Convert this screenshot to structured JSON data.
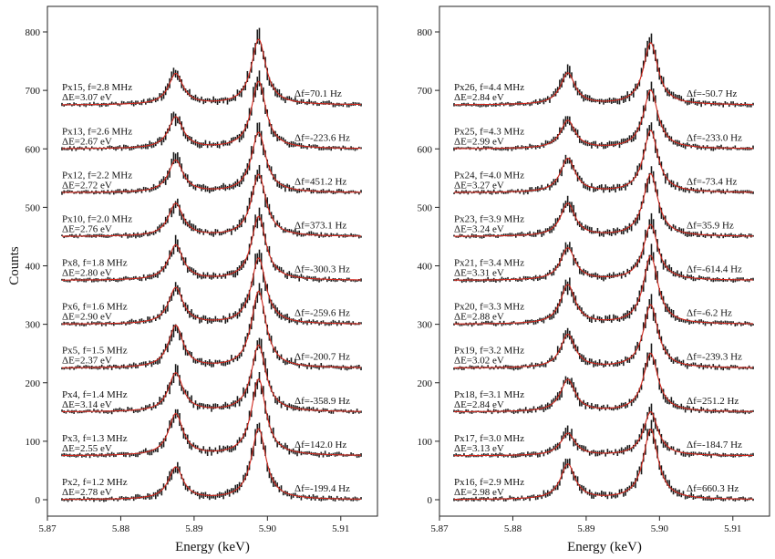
{
  "chart_data": [
    {
      "type": "line",
      "panel": "left",
      "xlabel": "Energy (keV)",
      "ylabel": "Counts",
      "xlim": [
        5.87,
        5.915
      ],
      "ylim": [
        0,
        800
      ],
      "xticks": [
        5.87,
        5.88,
        5.89,
        5.9,
        5.91
      ],
      "xtick_labels": [
        "5.87",
        "5.88",
        "5.89",
        "5.90",
        "5.91"
      ],
      "yticks": [
        0,
        100,
        200,
        300,
        400,
        500,
        600,
        700,
        800
      ],
      "ytick_labels": [
        "0",
        "100",
        "200",
        "300",
        "400",
        "500",
        "600",
        "700",
        "800"
      ],
      "grid": false,
      "offset_step": 75,
      "peak_energies_keV": [
        5.8875,
        5.8988
      ],
      "styles": {
        "data_color": "#1a1a1a",
        "fit_color": "#d0271d"
      },
      "series": [
        {
          "pixel_line1": "Px2, f=1.2 MHz",
          "de": "ΔE=2.78 eV",
          "df": "Δf=-199.4 Hz",
          "offset": 0,
          "peak1": 55,
          "peak2": 121
        },
        {
          "pixel_line1": "Px3, f=1.3 MHz",
          "de": "ΔE=2.55 eV",
          "df": "Δf=142.0 Hz",
          "offset": 75,
          "peak1": 71,
          "peak2": 131
        },
        {
          "pixel_line1": "Px4, f=1.4 MHz",
          "de": "ΔE=3.14 eV",
          "df": "Δf=-358.9 Hz",
          "offset": 150,
          "peak1": 66,
          "peak2": 114
        },
        {
          "pixel_line1": "Px5, f=1.5 MHz",
          "de": "ΔE=2.37 eV",
          "df": "Δf=-200.7 Hz",
          "offset": 225,
          "peak1": 72,
          "peak2": 131
        },
        {
          "pixel_line1": "Px6, f=1.6 MHz",
          "de": "ΔE=2.90 eV",
          "df": "Δf=-259.6 Hz",
          "offset": 300,
          "peak1": 62,
          "peak2": 113
        },
        {
          "pixel_line1": "Px8, f=1.8 MHz",
          "de": "ΔE=2.80 eV",
          "df": "Δf=-300.3 Hz",
          "offset": 375,
          "peak1": 60,
          "peak2": 109
        },
        {
          "pixel_line1": "Px10, f=2.0 MHz",
          "de": "ΔE=2.76 eV",
          "df": "Δf=373.1 Hz",
          "offset": 450,
          "peak1": 56,
          "peak2": 106
        },
        {
          "pixel_line1": "Px12, f=2.2 MHz",
          "de": "ΔE=2.72 eV",
          "df": "Δf=451.2 Hz",
          "offset": 525,
          "peak1": 55,
          "peak2": 103
        },
        {
          "pixel_line1": "Px13, f=2.6 MHz",
          "de": "ΔE=2.67 eV",
          "df": "Δf=-223.6 Hz",
          "offset": 600,
          "peak1": 54,
          "peak2": 115
        },
        {
          "pixel_line1": "Px15, f=2.8 MHz",
          "de": "ΔE=3.07 eV",
          "df": "Δf=70.1 Hz",
          "offset": 675,
          "peak1": 53,
          "peak2": 112
        }
      ]
    },
    {
      "type": "line",
      "panel": "right",
      "xlabel": "Energy (keV)",
      "ylabel": "",
      "xlim": [
        5.87,
        5.915
      ],
      "ylim": [
        0,
        800
      ],
      "xticks": [
        5.87,
        5.88,
        5.89,
        5.9,
        5.91
      ],
      "xtick_labels": [
        "5.87",
        "5.88",
        "5.89",
        "5.90",
        "5.91"
      ],
      "yticks": [
        0,
        100,
        200,
        300,
        400,
        500,
        600,
        700,
        800
      ],
      "ytick_labels": [
        "0",
        "100",
        "200",
        "300",
        "400",
        "500",
        "600",
        "700",
        "800"
      ],
      "grid": false,
      "offset_step": 75,
      "peak_energies_keV": [
        5.8875,
        5.8988
      ],
      "styles": {
        "data_color": "#1a1a1a",
        "fit_color": "#d0271d"
      },
      "series": [
        {
          "pixel_line1": "Px16, f=2.9 MHz",
          "de": "ΔE=2.98 eV",
          "df": "Δf=660.3 Hz",
          "offset": 0,
          "peak1": 60,
          "peak2": 120
        },
        {
          "pixel_line1": "Px17, f=3.0 MHz",
          "de": "ΔE=3.13 eV",
          "df": "Δf=-184.7 Hz",
          "offset": 75,
          "peak1": 38,
          "peak2": 75
        },
        {
          "pixel_line1": "Px18, f=3.1 MHz",
          "de": "ΔE=2.84 eV",
          "df": "Δf=251.2 Hz",
          "offset": 150,
          "peak1": 55,
          "peak2": 100
        },
        {
          "pixel_line1": "Px19, f=3.2 MHz",
          "de": "ΔE=3.02 eV",
          "df": "Δf=-239.3 Hz",
          "offset": 225,
          "peak1": 57,
          "peak2": 108
        },
        {
          "pixel_line1": "Px20, f=3.3 MHz",
          "de": "ΔE=2.88 eV",
          "df": "Δf=-6.2 Hz",
          "offset": 300,
          "peak1": 67,
          "peak2": 117
        },
        {
          "pixel_line1": "Px21, f=3.4 MHz",
          "de": "ΔE=3.31 eV",
          "df": "Δf=-614.4 Hz",
          "offset": 375,
          "peak1": 55,
          "peak2": 95
        },
        {
          "pixel_line1": "Px23, f=3.9 MHz",
          "de": "ΔE=3.24 eV",
          "df": "Δf=35.9 Hz",
          "offset": 450,
          "peak1": 56,
          "peak2": 107
        },
        {
          "pixel_line1": "Px24, f=4.0 MHz",
          "de": "ΔE=3.27 eV",
          "df": "Δf=-73.4 Hz",
          "offset": 525,
          "peak1": 58,
          "peak2": 106
        },
        {
          "pixel_line1": "Px25, f=4.3 MHz",
          "de": "ΔE=2.99 eV",
          "df": "Δf=-233.0 Hz",
          "offset": 600,
          "peak1": 48,
          "peak2": 100
        },
        {
          "pixel_line1": "Px26, f=4.4 MHz",
          "de": "ΔE=2.84 eV",
          "df": "Δf=-50.7 Hz",
          "offset": 675,
          "peak1": 54,
          "peak2": 106
        }
      ]
    }
  ]
}
